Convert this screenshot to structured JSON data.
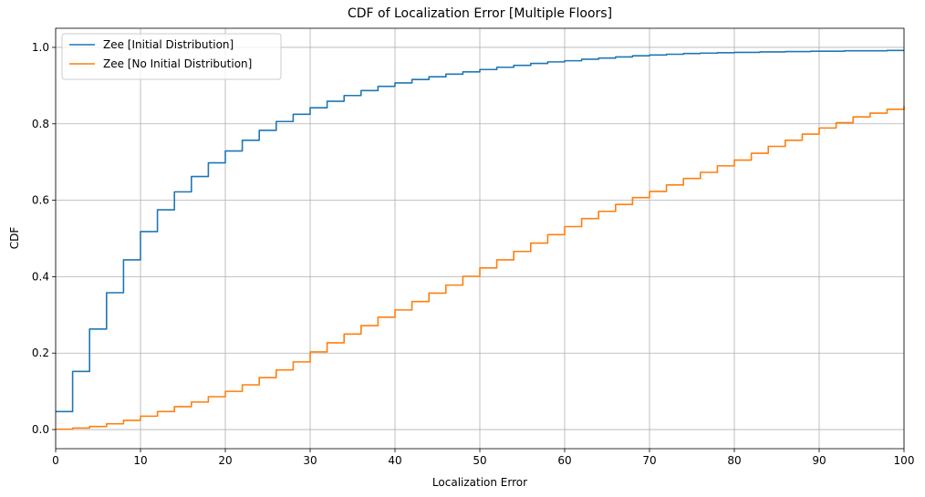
{
  "chart_data": {
    "type": "line",
    "title": "CDF of Localization Error [Multiple Floors]",
    "xlabel": "Localization Error",
    "ylabel": "CDF",
    "xlim": [
      0,
      100
    ],
    "ylim": [
      -0.05,
      1.05
    ],
    "xticks": [
      0,
      10,
      20,
      30,
      40,
      50,
      60,
      70,
      80,
      90,
      100
    ],
    "yticks": [
      0.0,
      0.2,
      0.4,
      0.6,
      0.8,
      1.0
    ],
    "grid": true,
    "legend_position": "top-left",
    "series": [
      {
        "name": "Zee [Initial Distribution]",
        "color": "#1f77b4",
        "step": true,
        "x": [
          0,
          1,
          2,
          3,
          4,
          5,
          6,
          7,
          8,
          9,
          10,
          11,
          12,
          13,
          14,
          15,
          16,
          17,
          18,
          19,
          20,
          21,
          22,
          23,
          24,
          25,
          26,
          27,
          28,
          29,
          30,
          31,
          32,
          33,
          34,
          35,
          36,
          37,
          38,
          39,
          40,
          41,
          42,
          43,
          44,
          45,
          46,
          47,
          48,
          49,
          50,
          51,
          52,
          53,
          54,
          55,
          56,
          57,
          58,
          59,
          60,
          61,
          62,
          63,
          64,
          65,
          66,
          67,
          68,
          69,
          70,
          71,
          72,
          73,
          74,
          75,
          76,
          77,
          78,
          79,
          80,
          81,
          82,
          83,
          84,
          85,
          86,
          87,
          88,
          89,
          90,
          91,
          92,
          93,
          94,
          95,
          96,
          97,
          98,
          99,
          100
        ],
        "y": [
          0.047,
          0.047,
          0.152,
          0.152,
          0.263,
          0.263,
          0.358,
          0.358,
          0.444,
          0.444,
          0.518,
          0.518,
          0.575,
          0.575,
          0.622,
          0.622,
          0.662,
          0.662,
          0.698,
          0.698,
          0.729,
          0.729,
          0.757,
          0.757,
          0.783,
          0.783,
          0.806,
          0.806,
          0.825,
          0.825,
          0.842,
          0.842,
          0.859,
          0.859,
          0.874,
          0.874,
          0.887,
          0.887,
          0.898,
          0.898,
          0.907,
          0.907,
          0.916,
          0.916,
          0.923,
          0.923,
          0.93,
          0.93,
          0.936,
          0.936,
          0.942,
          0.942,
          0.948,
          0.948,
          0.953,
          0.953,
          0.958,
          0.958,
          0.962,
          0.962,
          0.965,
          0.965,
          0.969,
          0.969,
          0.972,
          0.972,
          0.975,
          0.975,
          0.978,
          0.978,
          0.98,
          0.98,
          0.982,
          0.982,
          0.984,
          0.984,
          0.985,
          0.985,
          0.986,
          0.986,
          0.987,
          0.987,
          0.987,
          0.988,
          0.988,
          0.988,
          0.989,
          0.989,
          0.989,
          0.99,
          0.99,
          0.99,
          0.99,
          0.991,
          0.991,
          0.991,
          0.991,
          0.991,
          0.992,
          0.992,
          0.992
        ]
      },
      {
        "name": "Zee [No Initial Distribution]",
        "color": "#ff7f0e",
        "step": true,
        "x": [
          0,
          1,
          2,
          3,
          4,
          5,
          6,
          7,
          8,
          9,
          10,
          11,
          12,
          13,
          14,
          15,
          16,
          17,
          18,
          19,
          20,
          21,
          22,
          23,
          24,
          25,
          26,
          27,
          28,
          29,
          30,
          31,
          32,
          33,
          34,
          35,
          36,
          37,
          38,
          39,
          40,
          41,
          42,
          43,
          44,
          45,
          46,
          47,
          48,
          49,
          50,
          51,
          52,
          53,
          54,
          55,
          56,
          57,
          58,
          59,
          60,
          61,
          62,
          63,
          64,
          65,
          66,
          67,
          68,
          69,
          70,
          71,
          72,
          73,
          74,
          75,
          76,
          77,
          78,
          79,
          80,
          81,
          82,
          83,
          84,
          85,
          86,
          87,
          88,
          89,
          90,
          91,
          92,
          93,
          94,
          95,
          96,
          97,
          98,
          99,
          100
        ],
        "y": [
          0.001,
          0.001,
          0.004,
          0.004,
          0.008,
          0.008,
          0.015,
          0.015,
          0.024,
          0.024,
          0.035,
          0.035,
          0.047,
          0.047,
          0.06,
          0.06,
          0.072,
          0.072,
          0.086,
          0.086,
          0.1,
          0.1,
          0.117,
          0.117,
          0.136,
          0.136,
          0.156,
          0.156,
          0.177,
          0.177,
          0.203,
          0.203,
          0.227,
          0.227,
          0.25,
          0.25,
          0.272,
          0.272,
          0.294,
          0.294,
          0.313,
          0.313,
          0.335,
          0.335,
          0.357,
          0.357,
          0.378,
          0.378,
          0.401,
          0.401,
          0.423,
          0.423,
          0.444,
          0.444,
          0.466,
          0.466,
          0.488,
          0.488,
          0.51,
          0.51,
          0.531,
          0.531,
          0.552,
          0.552,
          0.571,
          0.571,
          0.589,
          0.589,
          0.607,
          0.607,
          0.623,
          0.623,
          0.64,
          0.64,
          0.657,
          0.657,
          0.673,
          0.673,
          0.69,
          0.69,
          0.705,
          0.705,
          0.723,
          0.723,
          0.741,
          0.741,
          0.757,
          0.757,
          0.773,
          0.773,
          0.789,
          0.789,
          0.803,
          0.803,
          0.818,
          0.818,
          0.828,
          0.828,
          0.838,
          0.838,
          0.847
        ]
      }
    ]
  }
}
